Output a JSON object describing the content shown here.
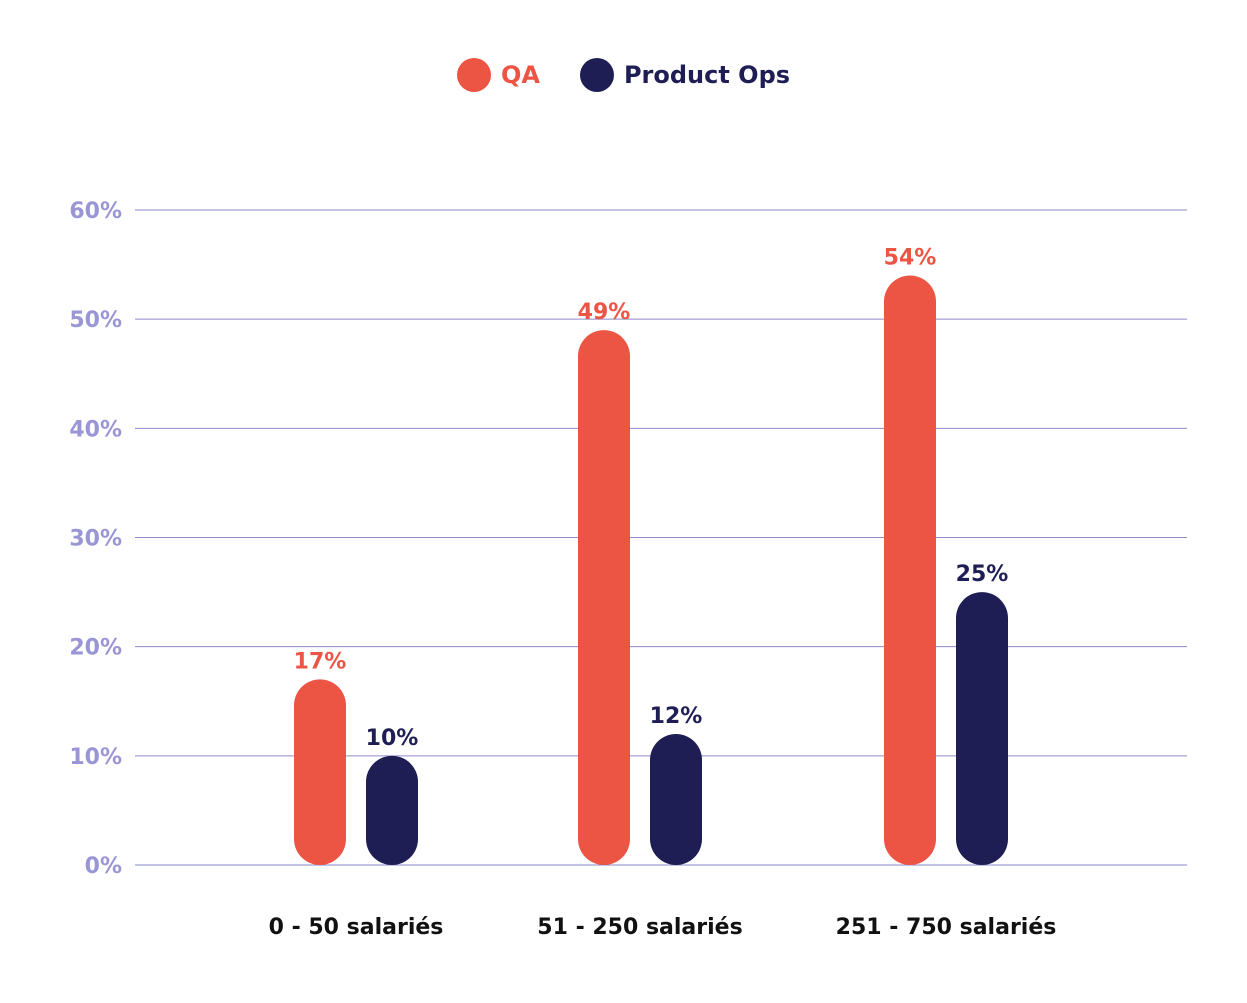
{
  "chart_data": {
    "type": "bar",
    "categories": [
      "0 - 50 salariés",
      "51 - 250 salariés",
      "251 - 750 salariés"
    ],
    "series": [
      {
        "name": "QA",
        "values": [
          17,
          49,
          54
        ],
        "color": "#EC5444"
      },
      {
        "name": "Product Ops",
        "values": [
          10,
          12,
          25
        ],
        "color": "#1E1E55"
      }
    ],
    "value_labels": {
      "QA": [
        "17%",
        "49%",
        "54%"
      ],
      "Product Ops": [
        "10%",
        "12%",
        "25%"
      ]
    },
    "y_ticks": [
      "0%",
      "10%",
      "20%",
      "30%",
      "40%",
      "50%",
      "60%"
    ],
    "ylim": [
      0,
      60
    ],
    "grid": true,
    "legend_position": "top-center",
    "colors": {
      "axis_tick": "#9A96D6",
      "grid": "#8E8AC8",
      "category_label": "#111111"
    }
  }
}
